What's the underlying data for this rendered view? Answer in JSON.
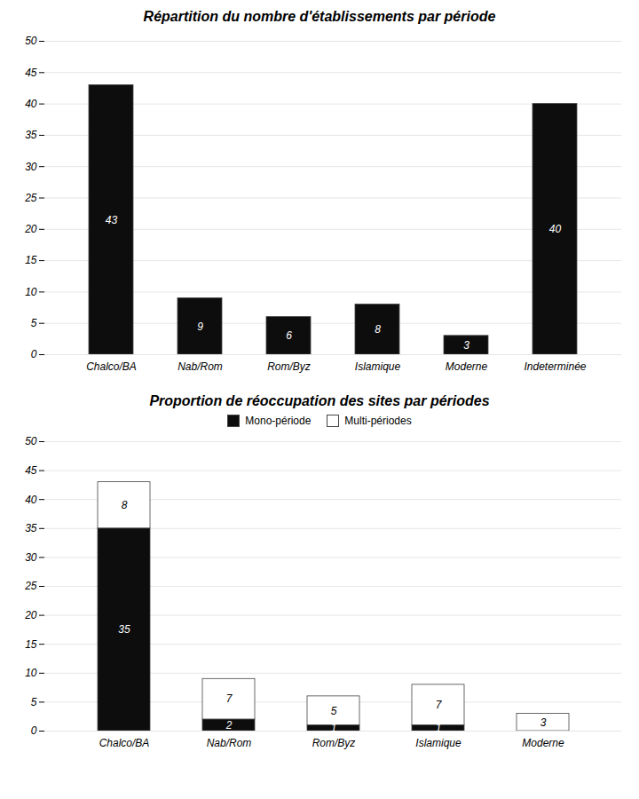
{
  "chart_data": [
    {
      "type": "bar",
      "title": "Répartition du nombre d'établissements par période",
      "categories": [
        "Chalco/BA",
        "Nab/Rom",
        "Rom/Byz",
        "Islamique",
        "Moderne",
        "Indeterminée"
      ],
      "values": [
        43,
        9,
        6,
        8,
        3,
        40
      ],
      "color": "#0d0d0d",
      "ylim": [
        0,
        50
      ],
      "yticks": [
        0,
        5,
        10,
        15,
        20,
        25,
        30,
        35,
        40,
        45,
        50
      ],
      "grid": true,
      "data_labels": true
    },
    {
      "type": "bar",
      "title": "Proportion de réoccupation des sites par périodes",
      "categories": [
        "Chalco/BA",
        "Nab/Rom",
        "Rom/Byz",
        "Islamique",
        "Moderne"
      ],
      "series": [
        {
          "name": "Mono-période",
          "color": "#0d0d0d",
          "values": [
            35,
            2,
            1,
            1,
            0
          ]
        },
        {
          "name": "Multi-périodes",
          "color": "#ffffff",
          "values": [
            8,
            7,
            5,
            7,
            3
          ]
        }
      ],
      "stacked": true,
      "ylim": [
        0,
        50
      ],
      "yticks": [
        0,
        5,
        10,
        15,
        20,
        25,
        30,
        35,
        40,
        45,
        50
      ],
      "grid": true,
      "legend": "top",
      "data_labels": true
    }
  ]
}
